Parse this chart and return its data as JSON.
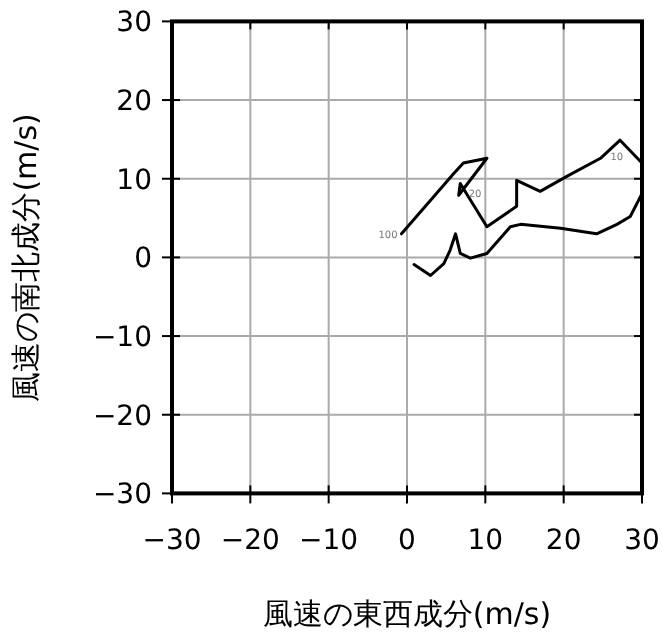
{
  "chart_data": {
    "type": "line",
    "xlabel": "風速の東西成分(m/s)",
    "ylabel": "風速の南北成分(m/s)",
    "x": [
      0.9,
      3.0,
      4.7,
      5.5,
      6.2,
      6.8,
      8.1,
      10.2,
      13.2,
      14.5,
      19.6,
      24.2,
      26.8,
      28.5,
      30,
      30,
      27.2,
      24.7,
      20.4,
      17.0,
      14.0,
      14.0,
      10.2,
      6.8,
      6.6,
      10.2,
      7.2,
      6.0,
      -0.7
    ],
    "values": [
      -0.9,
      -2.3,
      -0.8,
      0.9,
      3.0,
      0.5,
      -0.1,
      0.5,
      3.9,
      4.2,
      3.7,
      3.0,
      4.2,
      5.2,
      8.1,
      12.0,
      14.9,
      12.6,
      10.3,
      8.4,
      9.8,
      6.5,
      3.9,
      9.4,
      7.9,
      12.6,
      12.0,
      10.7,
      3.0
    ],
    "color": "#000000",
    "xlim": [
      -30,
      30
    ],
    "ylim": [
      -30,
      30
    ],
    "xticks": [
      -30,
      -20,
      -10,
      0,
      10,
      20,
      30
    ],
    "yticks": [
      -30,
      -20,
      -10,
      0,
      10,
      20,
      30
    ],
    "grid": true,
    "annotations": [
      {
        "text": "100",
        "x": -0.7,
        "y": 3.0
      },
      {
        "text": "20",
        "x": 6.6,
        "y": 7.9
      },
      {
        "text": "10",
        "x": 24.7,
        "y": 12.6
      }
    ]
  }
}
